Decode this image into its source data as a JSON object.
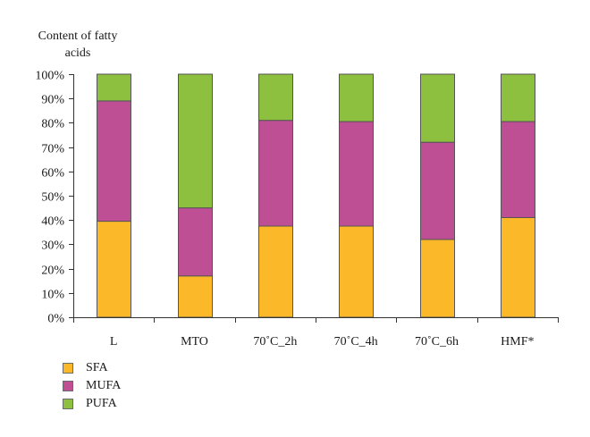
{
  "chart_data": {
    "type": "bar",
    "stacked": true,
    "title": "Content of fatty\nacids",
    "categories": [
      "L",
      "MTO",
      "70˚C_2h",
      "70˚C_4h",
      "70˚C_6h",
      "HMF*"
    ],
    "series": [
      {
        "name": "SFA",
        "color": "#FBB829",
        "values": [
          39.5,
          17.0,
          37.5,
          37.5,
          32.0,
          41.0
        ]
      },
      {
        "name": "MUFA",
        "color": "#BE4F95",
        "values": [
          49.5,
          28.0,
          43.5,
          43.0,
          40.0,
          39.5
        ]
      },
      {
        "name": "PUFA",
        "color": "#8DC03F",
        "values": [
          11.0,
          55.0,
          19.0,
          19.5,
          28.0,
          19.5
        ]
      }
    ],
    "ylim": [
      0,
      100
    ],
    "yticks": [
      0,
      10,
      20,
      30,
      40,
      50,
      60,
      70,
      80,
      90,
      100
    ],
    "ytick_labels": [
      "0%",
      "10%",
      "20%",
      "30%",
      "40%",
      "50%",
      "60%",
      "70%",
      "80%",
      "90%",
      "100%"
    ],
    "xlabel": "",
    "ylabel": "",
    "grid": false,
    "legend_position": "bottom-left"
  }
}
